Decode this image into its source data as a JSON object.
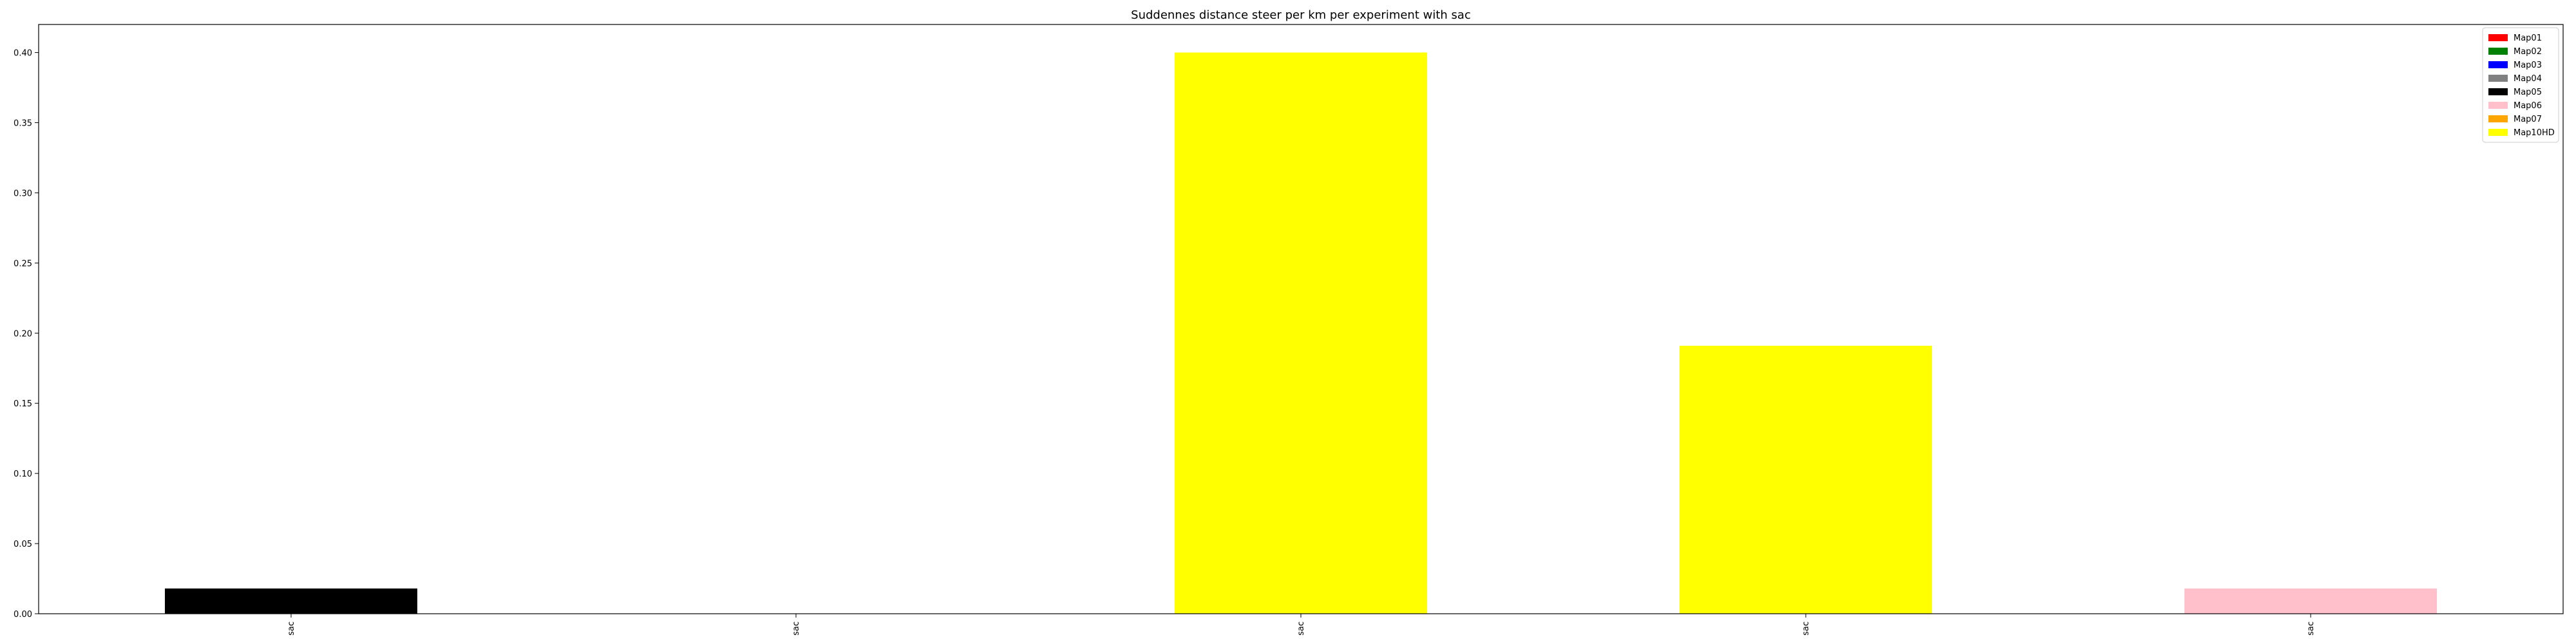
{
  "chart_data": {
    "type": "bar",
    "title": "Suddennes distance steer per km per experiment with sac",
    "xlabel": "",
    "ylabel": "",
    "categories": [
      "sac",
      "sac",
      "sac",
      "sac",
      "sac"
    ],
    "ylim": [
      0,
      0.42
    ],
    "yticks": [
      0.0,
      0.05,
      0.1,
      0.15,
      0.2,
      0.25,
      0.3,
      0.35,
      0.4
    ],
    "yticks_text": [
      "0.00",
      "0.05",
      "0.10",
      "0.15",
      "0.20",
      "0.25",
      "0.30",
      "0.35",
      "0.40"
    ],
    "bars": [
      {
        "category_index": 0,
        "value": 0.018,
        "series": "Map05",
        "color": "#000000"
      },
      {
        "category_index": 1,
        "value": 0.0,
        "series": "",
        "color": "#ffffff"
      },
      {
        "category_index": 2,
        "value": 0.4,
        "series": "Map10HD",
        "color": "#ffff00"
      },
      {
        "category_index": 3,
        "value": 0.191,
        "series": "Map10HD",
        "color": "#ffff00"
      },
      {
        "category_index": 4,
        "value": 0.018,
        "series": "Map06",
        "color": "#ffc0cb"
      }
    ],
    "legend_position": "top-right",
    "legend": [
      {
        "name": "Map01",
        "color": "#ff0000"
      },
      {
        "name": "Map02",
        "color": "#008000"
      },
      {
        "name": "Map03",
        "color": "#0000ff"
      },
      {
        "name": "Map04",
        "color": "#808080"
      },
      {
        "name": "Map05",
        "color": "#000000"
      },
      {
        "name": "Map06",
        "color": "#ffc0cb"
      },
      {
        "name": "Map07",
        "color": "#ffa500"
      },
      {
        "name": "Map10HD",
        "color": "#ffff00"
      }
    ],
    "grid": false
  }
}
